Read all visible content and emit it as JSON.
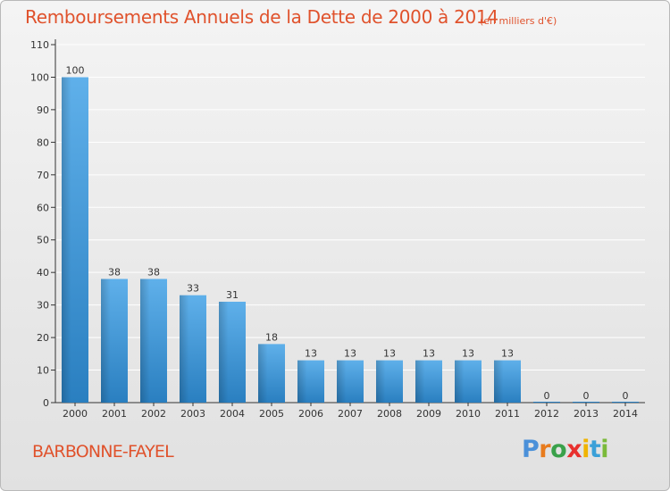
{
  "title": "Remboursements Annuels de la Dette de 2000 à 2014",
  "subtitle": "(en milliers d'€)",
  "place_name": "BARBONNE-FAYEL",
  "logo": {
    "text": "Proxiti",
    "letter_colors": [
      "#4a90d9",
      "#e87b1d",
      "#3aa14a",
      "#e8302e",
      "#f0b400",
      "#3aa0d8",
      "#7aba3a"
    ]
  },
  "colors": {
    "bar_top": "#5fb0ea",
    "bar_bottom": "#2a7fc0",
    "accent": "#e0522c",
    "axis": "#333333",
    "grid": "#ffffff"
  },
  "chart_data": {
    "type": "bar",
    "categories": [
      "2000",
      "2001",
      "2002",
      "2003",
      "2004",
      "2005",
      "2006",
      "2007",
      "2008",
      "2009",
      "2010",
      "2011",
      "2012",
      "2013",
      "2014"
    ],
    "values": [
      100,
      38,
      38,
      33,
      31,
      18,
      13,
      13,
      13,
      13,
      13,
      13,
      0,
      0,
      0
    ],
    "data_labels": [
      "100",
      "38",
      "38",
      "33",
      "31",
      "18",
      "13",
      "13",
      "13",
      "13",
      "13",
      "13",
      "0",
      "0",
      "0"
    ],
    "yticks": [
      "0",
      "10",
      "20",
      "30",
      "40",
      "50",
      "60",
      "70",
      "80",
      "90",
      "100",
      "110"
    ],
    "ylim": [
      0,
      110
    ],
    "grid": true,
    "legend": "none"
  }
}
